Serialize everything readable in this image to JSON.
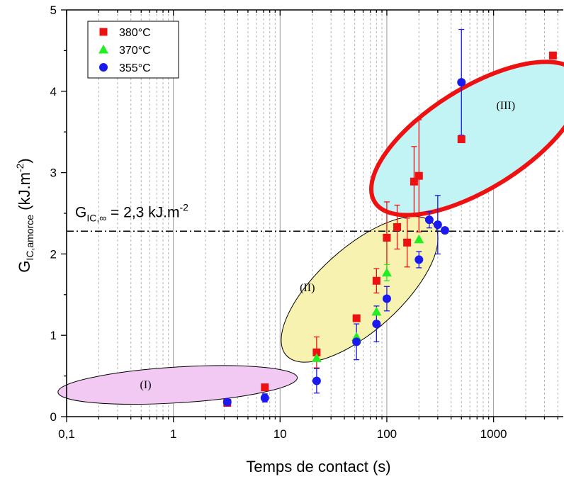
{
  "chart_data": {
    "type": "scatter",
    "x_scale": "log",
    "xlim": [
      0.1,
      4500
    ],
    "ylim": [
      0,
      5
    ],
    "xlabel": "Temps de contact (s)",
    "ylabel": {
      "main": "G",
      "sub": "IC,amorce",
      "unit_open": " (kJ.m",
      "unit_sup": "-2",
      "unit_close": ")"
    },
    "x_tick_labels": [
      {
        "value": 0.1,
        "label": "0,1"
      },
      {
        "value": 1,
        "label": "1"
      },
      {
        "value": 10,
        "label": "10"
      },
      {
        "value": 100,
        "label": "100"
      },
      {
        "value": 1000,
        "label": "1000"
      }
    ],
    "y_ticks": [
      0,
      1,
      2,
      3,
      4,
      5
    ],
    "grid": "vertical dashed gray at minor log ticks",
    "legend_position": "top-left",
    "reference_line": {
      "y": 2.28,
      "style": "dash-dot",
      "label_main": "G",
      "label_sub": "IC,∞",
      "label_rest": " = 2,3 kJ.m",
      "label_sup": "-2"
    },
    "series": [
      {
        "name": "380°C",
        "marker": "square",
        "color": "#ee1111",
        "points": [
          {
            "x": 3.2,
            "y": 0.17
          },
          {
            "x": 7.2,
            "y": 0.36,
            "err": 0.03
          },
          {
            "x": 22,
            "y": 0.79,
            "err": 0.19
          },
          {
            "x": 52,
            "y": 1.21
          },
          {
            "x": 80,
            "y": 1.67,
            "err": 0.15
          },
          {
            "x": 100,
            "y": 2.2,
            "err": 0.44
          },
          {
            "x": 125,
            "y": 2.33,
            "err": 0.27
          },
          {
            "x": 155,
            "y": 2.14,
            "err": 0.3
          },
          {
            "x": 180,
            "y": 2.89,
            "err": 0.43
          },
          {
            "x": 200,
            "y": 2.96,
            "err": 0.69
          },
          {
            "x": 500,
            "y": 3.41
          },
          {
            "x": 3600,
            "y": 4.44
          }
        ]
      },
      {
        "name": "370°C",
        "marker": "triangle",
        "color": "#22ee22",
        "points": [
          {
            "x": 22,
            "y": 0.72
          },
          {
            "x": 52,
            "y": 0.98
          },
          {
            "x": 80,
            "y": 1.29
          },
          {
            "x": 100,
            "y": 1.77,
            "err": 0.1
          },
          {
            "x": 200,
            "y": 2.18
          }
        ]
      },
      {
        "name": "355°C",
        "marker": "circle",
        "color": "#1a1aee",
        "points": [
          {
            "x": 3.2,
            "y": 0.18
          },
          {
            "x": 7.2,
            "y": 0.23,
            "err": 0.05
          },
          {
            "x": 22,
            "y": 0.44,
            "err": 0.15
          },
          {
            "x": 52,
            "y": 0.92,
            "err": 0.22
          },
          {
            "x": 80,
            "y": 1.14,
            "err": 0.22
          },
          {
            "x": 100,
            "y": 1.45,
            "err": 0.15
          },
          {
            "x": 200,
            "y": 1.93,
            "err": 0.1
          },
          {
            "x": 250,
            "y": 2.42,
            "err": 0.1
          },
          {
            "x": 300,
            "y": 2.36,
            "err": 0.36
          },
          {
            "x": 350,
            "y": 2.29
          },
          {
            "x": 500,
            "y": 4.11,
            "err": 0.65
          }
        ]
      }
    ],
    "regions": [
      {
        "label": "(I)",
        "label_x": 0.55,
        "label_y": 0.35,
        "fill": "#f2c9f2",
        "stroke": "#000000",
        "stroke_width": 1,
        "cx_decades": 0.04,
        "cy": 0.39,
        "rx_decades": 1.123,
        "ry": 0.22,
        "rotate_deg": -3.5
      },
      {
        "label": "(II)",
        "label_x": 18,
        "label_y": 1.54,
        "fill": "#f8f2b0",
        "stroke": "#000000",
        "stroke_width": 1,
        "cx_decades": 1.745,
        "cy": 1.565,
        "rx_decades": 0.924,
        "ry": 0.51,
        "rotate_deg": -42
      },
      {
        "label": "(III)",
        "label_x": 1300,
        "label_y": 3.78,
        "fill": "#c2f4f6",
        "stroke": "#ee1111",
        "stroke_width": 6,
        "cx_decades": 2.84,
        "cy": 3.42,
        "rx_decades": 1.124,
        "ry": 0.62,
        "rotate_deg": -32
      }
    ]
  }
}
